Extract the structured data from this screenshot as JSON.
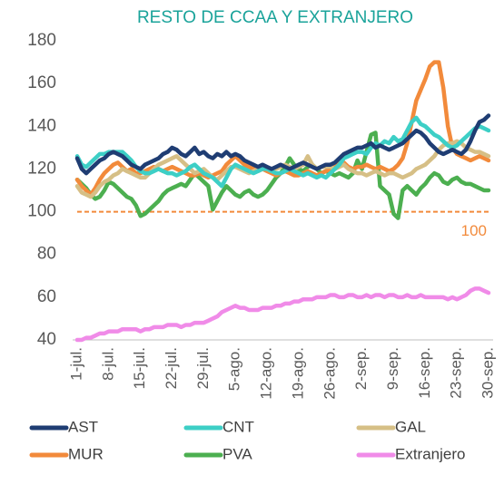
{
  "chart_data": {
    "type": "line",
    "title": "RESTO DE CCAA Y EXTRANJERO",
    "categories": [
      "1-jul.",
      null,
      null,
      null,
      null,
      null,
      null,
      "8-jul.",
      null,
      null,
      null,
      null,
      null,
      null,
      "15-jul.",
      null,
      null,
      null,
      null,
      null,
      null,
      "22-jul.",
      null,
      null,
      null,
      null,
      null,
      null,
      "29-jul.",
      null,
      null,
      null,
      null,
      null,
      null,
      "5-ago.",
      null,
      null,
      null,
      null,
      null,
      null,
      "12-ago.",
      null,
      null,
      null,
      null,
      null,
      null,
      "19-ago.",
      null,
      null,
      null,
      null,
      null,
      null,
      "26-ago.",
      null,
      null,
      null,
      null,
      null,
      null,
      "2-sep.",
      null,
      null,
      null,
      null,
      null,
      null,
      "9-sep.",
      null,
      null,
      null,
      null,
      null,
      null,
      "16-sep.",
      null,
      null,
      null,
      null,
      null,
      null,
      "23-sep.",
      null,
      null,
      null,
      null,
      null,
      null,
      "30-sep."
    ],
    "series": [
      {
        "name": "AST",
        "color": "#1f3d73",
        "values": [
          125,
          120,
          118,
          120,
          122,
          124,
          125,
          127,
          128,
          127,
          126,
          124,
          122,
          121,
          120,
          122,
          123,
          124,
          125,
          127,
          128,
          130,
          129,
          127,
          126,
          128,
          130,
          127,
          128,
          126,
          125,
          127,
          126,
          128,
          126,
          127,
          126,
          124,
          123,
          122,
          121,
          122,
          121,
          120,
          121,
          122,
          121,
          120,
          121,
          122,
          123,
          122,
          121,
          120,
          121,
          122,
          122,
          123,
          125,
          127,
          128,
          129,
          130,
          130,
          131,
          132,
          130,
          131,
          130,
          129,
          130,
          131,
          132,
          134,
          136,
          138,
          137,
          135,
          132,
          130,
          128,
          127,
          128,
          129,
          128,
          127,
          129,
          133,
          138,
          142,
          143,
          145
        ]
      },
      {
        "name": "CNT",
        "color": "#3dcfc6",
        "values": [
          126,
          122,
          121,
          123,
          125,
          127,
          127,
          128,
          128,
          128,
          128,
          126,
          124,
          121,
          119,
          118,
          118,
          119,
          120,
          119,
          118,
          118,
          117,
          118,
          119,
          121,
          122,
          120,
          118,
          117,
          116,
          114,
          112,
          116,
          120,
          122,
          121,
          120,
          119,
          118,
          119,
          120,
          120,
          119,
          118,
          118,
          119,
          120,
          119,
          118,
          117,
          118,
          117,
          116,
          117,
          116,
          118,
          120,
          122,
          125,
          126,
          127,
          128,
          128,
          127,
          130,
          132,
          131,
          133,
          132,
          135,
          133,
          134,
          138,
          142,
          144,
          141,
          140,
          138,
          136,
          135,
          133,
          131,
          130,
          131,
          133,
          135,
          137,
          139,
          140,
          139,
          138
        ]
      },
      {
        "name": "GAL",
        "color": "#d6bf86",
        "values": [
          112,
          109,
          108,
          107,
          109,
          112,
          114,
          115,
          117,
          118,
          120,
          119,
          118,
          117,
          116,
          116,
          118,
          120,
          122,
          123,
          124,
          125,
          126,
          124,
          122,
          120,
          118,
          119,
          120,
          118,
          116,
          115,
          117,
          119,
          121,
          121,
          120,
          119,
          118,
          119,
          120,
          121,
          120,
          119,
          120,
          121,
          122,
          121,
          120,
          121,
          122,
          126,
          122,
          120,
          121,
          121,
          121,
          120,
          121,
          122,
          120,
          119,
          118,
          118,
          117,
          118,
          119,
          118,
          117,
          118,
          118,
          117,
          116,
          117,
          118,
          120,
          121,
          122,
          124,
          126,
          129,
          131,
          132,
          132,
          133,
          132,
          130,
          129,
          128,
          128,
          127,
          126
        ]
      },
      {
        "name": "MUR",
        "color": "#f28a3b",
        "values": [
          115,
          112,
          110,
          108,
          111,
          115,
          118,
          120,
          122,
          123,
          121,
          119,
          120,
          118,
          118,
          119,
          120,
          121,
          120,
          119,
          120,
          121,
          120,
          119,
          118,
          117,
          117,
          118,
          117,
          116,
          117,
          118,
          119,
          122,
          124,
          126,
          124,
          122,
          121,
          120,
          119,
          120,
          119,
          118,
          117,
          118,
          119,
          118,
          117,
          117,
          118,
          119,
          118,
          117,
          118,
          119,
          120,
          122,
          124,
          123,
          121,
          120,
          121,
          121,
          122,
          121,
          120,
          121,
          120,
          119,
          120,
          122,
          125,
          132,
          142,
          152,
          157,
          162,
          168,
          170,
          170,
          158,
          140,
          130,
          127,
          126,
          125,
          124,
          125,
          126,
          125,
          124
        ]
      },
      {
        "name": "PVA",
        "color": "#4caf50",
        "values": [
          115,
          113,
          111,
          108,
          106,
          107,
          110,
          114,
          113,
          111,
          109,
          107,
          106,
          103,
          98,
          99,
          101,
          103,
          105,
          108,
          110,
          111,
          112,
          113,
          112,
          115,
          118,
          116,
          114,
          112,
          101,
          105,
          109,
          112,
          110,
          108,
          107,
          109,
          110,
          108,
          107,
          108,
          110,
          113,
          116,
          118,
          121,
          125,
          122,
          120,
          119,
          121,
          122,
          120,
          118,
          119,
          118,
          117,
          118,
          117,
          116,
          118,
          124,
          120,
          128,
          136,
          137,
          112,
          110,
          108,
          99,
          97,
          110,
          112,
          110,
          108,
          111,
          113,
          116,
          118,
          117,
          114,
          113,
          115,
          116,
          114,
          113,
          113,
          112,
          111,
          110,
          110
        ]
      },
      {
        "name": "Extranjero",
        "color": "#f08be8",
        "values": [
          40,
          40,
          41,
          41,
          42,
          43,
          43,
          44,
          44,
          44,
          45,
          45,
          45,
          45,
          44,
          45,
          45,
          46,
          46,
          46,
          47,
          47,
          47,
          46,
          47,
          47,
          48,
          48,
          48,
          49,
          50,
          51,
          53,
          54,
          55,
          56,
          55,
          55,
          54,
          54,
          54,
          55,
          55,
          55,
          56,
          56,
          57,
          57,
          58,
          58,
          59,
          59,
          59,
          60,
          60,
          60,
          61,
          61,
          60,
          60,
          61,
          61,
          60,
          60,
          61,
          60,
          61,
          61,
          60,
          61,
          61,
          60,
          60,
          61,
          60,
          60,
          61,
          60,
          60,
          60,
          60,
          60,
          59,
          60,
          59,
          60,
          61,
          63,
          64,
          64,
          63,
          62
        ]
      }
    ],
    "ylim": [
      40,
      180
    ],
    "yticks": [
      40,
      60,
      80,
      100,
      120,
      140,
      160,
      180
    ],
    "reference_line": {
      "value": 100,
      "label": "100",
      "color": "#f28a3b"
    },
    "grid": false
  }
}
